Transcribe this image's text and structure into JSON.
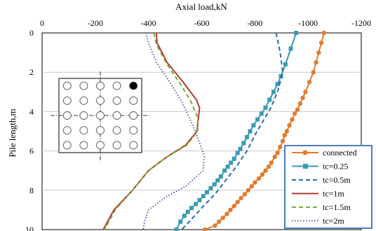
{
  "chart_data": {
    "type": "line",
    "title": "",
    "xlabel": "Axial load,kN",
    "ylabel": "Pile length,m",
    "xlim": [
      0,
      -1200
    ],
    "ylim": [
      0,
      10
    ],
    "x_axis_position": "top",
    "y_inverted": true,
    "x_ticks": [
      0,
      -200,
      -400,
      -600,
      -800,
      -1000,
      -1200
    ],
    "x_tick_labels": [
      "0",
      "-200",
      "-400",
      "-600",
      "-800",
      "-1000",
      "-1200"
    ],
    "y_ticks": [
      0,
      2,
      4,
      6,
      8,
      10
    ],
    "y_tick_labels": [
      "0",
      "2",
      "4",
      "6",
      "8",
      "10"
    ],
    "grid": {
      "horizontal": true,
      "vertical": false
    },
    "legend_position": "bottom-right",
    "series": [
      {
        "name": "connected",
        "color": "#e07b2e",
        "style": "solid",
        "marker": "circle",
        "points": [
          [
            -1060,
            0
          ],
          [
            -1050,
            0.5
          ],
          [
            -1040,
            1.0
          ],
          [
            -1030,
            1.5
          ],
          [
            -1020,
            2.0
          ],
          [
            -1005,
            2.5
          ],
          [
            -990,
            3.0
          ],
          [
            -980,
            3.3
          ],
          [
            -970,
            3.6
          ],
          [
            -960,
            3.9
          ],
          [
            -950,
            4.1
          ],
          [
            -940,
            4.4
          ],
          [
            -930,
            4.7
          ],
          [
            -920,
            5.0
          ],
          [
            -912,
            5.2
          ],
          [
            -905,
            5.5
          ],
          [
            -895,
            5.8
          ],
          [
            -885,
            6.1
          ],
          [
            -875,
            6.3
          ],
          [
            -862,
            6.6
          ],
          [
            -852,
            6.8
          ],
          [
            -840,
            7.0
          ],
          [
            -828,
            7.2
          ],
          [
            -815,
            7.4
          ],
          [
            -800,
            7.6
          ],
          [
            -788,
            7.8
          ],
          [
            -775,
            8.0
          ],
          [
            -762,
            8.2
          ],
          [
            -748,
            8.4
          ],
          [
            -735,
            8.6
          ],
          [
            -722,
            8.8
          ],
          [
            -708,
            9.0
          ],
          [
            -695,
            9.2
          ],
          [
            -680,
            9.4
          ],
          [
            -665,
            9.6
          ],
          [
            -650,
            9.8
          ],
          [
            -612,
            10.0
          ]
        ]
      },
      {
        "name": "tc=0.25",
        "color": "#3a9ab2",
        "style": "solid",
        "marker": "square",
        "points": [
          [
            -955,
            0
          ],
          [
            -935,
            0.8
          ],
          [
            -915,
            1.6
          ],
          [
            -898,
            2.2
          ],
          [
            -885,
            2.6
          ],
          [
            -870,
            3.0
          ],
          [
            -855,
            3.4
          ],
          [
            -840,
            3.8
          ],
          [
            -825,
            4.1
          ],
          [
            -810,
            4.4
          ],
          [
            -795,
            4.7
          ],
          [
            -782,
            5.0
          ],
          [
            -770,
            5.3
          ],
          [
            -758,
            5.6
          ],
          [
            -745,
            5.9
          ],
          [
            -735,
            6.1
          ],
          [
            -722,
            6.4
          ],
          [
            -710,
            6.6
          ],
          [
            -698,
            6.8
          ],
          [
            -686,
            7.0
          ],
          [
            -672,
            7.3
          ],
          [
            -660,
            7.5
          ],
          [
            -648,
            7.7
          ],
          [
            -634,
            7.9
          ],
          [
            -620,
            8.1
          ],
          [
            -606,
            8.3
          ],
          [
            -592,
            8.5
          ],
          [
            -578,
            8.7
          ],
          [
            -562,
            8.9
          ],
          [
            -548,
            9.1
          ],
          [
            -535,
            9.3
          ],
          [
            -520,
            9.6
          ],
          [
            -505,
            10.0
          ]
        ]
      },
      {
        "name": "tc=0.5m",
        "color": "#2b6aa6",
        "style": "dashed",
        "marker": "none",
        "points": [
          [
            -880,
            0
          ],
          [
            -895,
            1.0
          ],
          [
            -905,
            2.0
          ],
          [
            -885,
            3.0
          ],
          [
            -860,
            3.8
          ],
          [
            -830,
            4.5
          ],
          [
            -800,
            5.2
          ],
          [
            -770,
            6.0
          ],
          [
            -730,
            6.8
          ],
          [
            -690,
            7.5
          ],
          [
            -650,
            8.2
          ],
          [
            -600,
            8.9
          ],
          [
            -560,
            9.5
          ],
          [
            -525,
            10.0
          ]
        ]
      },
      {
        "name": "tc=1m",
        "color": "#b03a32",
        "style": "solid",
        "marker": "none",
        "points": [
          [
            -430,
            0
          ],
          [
            -432,
            0.5
          ],
          [
            -470,
            1.5
          ],
          [
            -530,
            2.5
          ],
          [
            -580,
            3.4
          ],
          [
            -592,
            3.8
          ],
          [
            -582,
            5.0
          ],
          [
            -540,
            5.7
          ],
          [
            -470,
            6.3
          ],
          [
            -400,
            7.0
          ],
          [
            -340,
            8.0
          ],
          [
            -270,
            9.0
          ],
          [
            -230,
            10.0
          ]
        ]
      },
      {
        "name": "tc=1.5m",
        "color": "#7daa3a",
        "style": "dashed",
        "marker": "none",
        "points": [
          [
            -420,
            0
          ],
          [
            -430,
            0.6
          ],
          [
            -470,
            1.6
          ],
          [
            -520,
            2.6
          ],
          [
            -560,
            3.5
          ],
          [
            -585,
            4.3
          ],
          [
            -585,
            5.0
          ],
          [
            -545,
            5.7
          ],
          [
            -470,
            6.3
          ],
          [
            -400,
            7.0
          ],
          [
            -340,
            8.0
          ],
          [
            -275,
            9.0
          ],
          [
            -235,
            10.0
          ]
        ]
      },
      {
        "name": "tc=2m",
        "color": "#5b5fa6",
        "style": "dotted",
        "marker": "none",
        "points": [
          [
            -390,
            0
          ],
          [
            -400,
            0.5
          ],
          [
            -430,
            1.5
          ],
          [
            -480,
            2.5
          ],
          [
            -525,
            3.5
          ],
          [
            -560,
            4.5
          ],
          [
            -590,
            5.5
          ],
          [
            -610,
            6.3
          ],
          [
            -605,
            7.0
          ],
          [
            -540,
            7.8
          ],
          [
            -470,
            8.3
          ],
          [
            -400,
            9.0
          ],
          [
            -385,
            9.6
          ],
          [
            -380,
            10.0
          ]
        ]
      }
    ]
  },
  "inset": {
    "rows": 5,
    "cols": 5,
    "filled": [
      [
        0,
        4
      ]
    ]
  }
}
